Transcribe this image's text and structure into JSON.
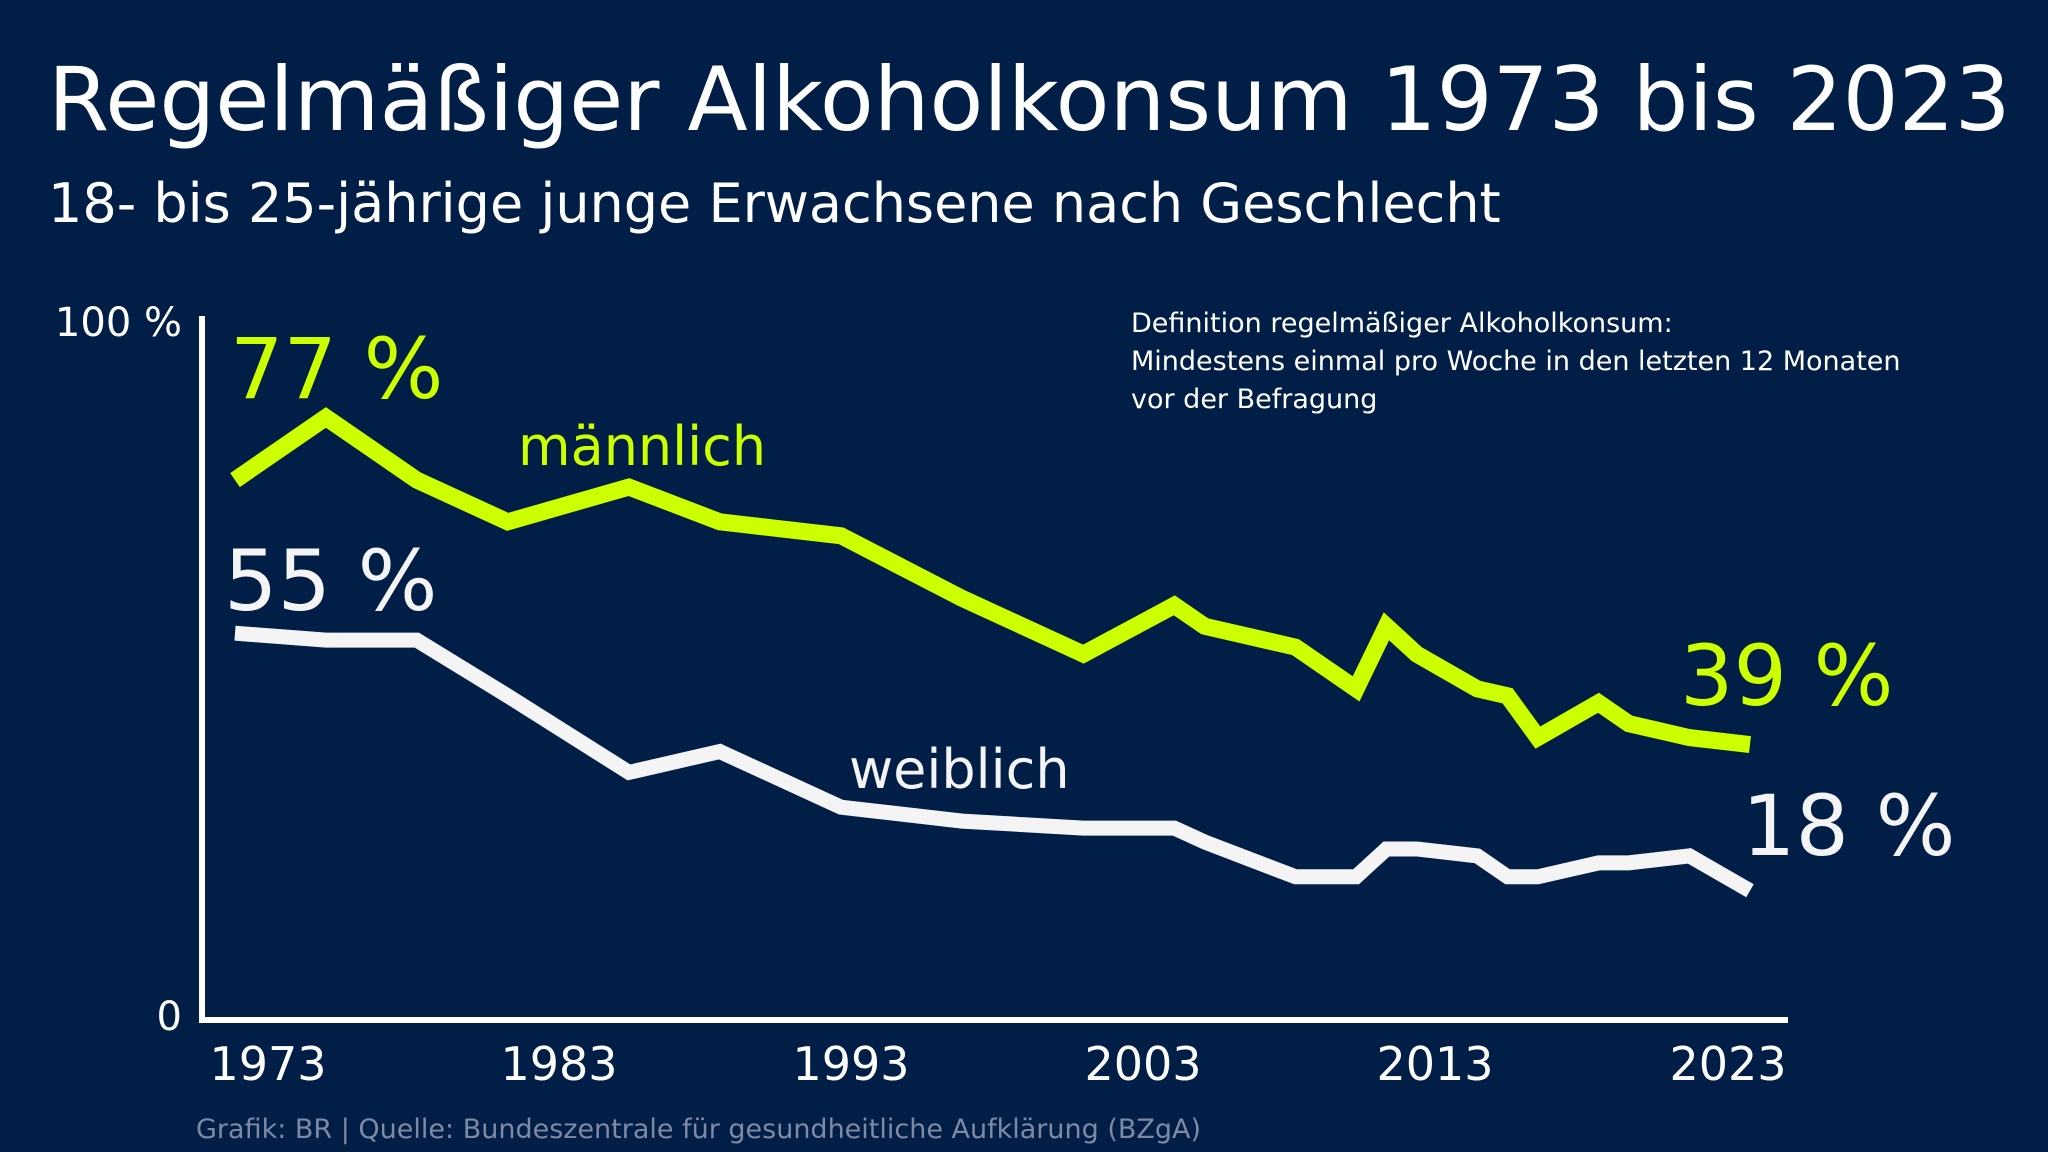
{
  "title": "Regelmäßiger Alkoholkonsum 1973 bis 2023",
  "subtitle": "18- bis 25-jährige junge Erwachsene nach Geschlecht",
  "definition": [
    "Definition regelmäßiger Alkoholkonsum:",
    "Mindestens einmal pro Woche in den letzten 12 Monaten",
    "vor der Befragung"
  ],
  "footer": "Grafik: BR | Quelle: Bundeszentrale für gesundheitliche Aufklärung (BZgA)",
  "colors": {
    "background": "#011e46",
    "male": "#ccff00",
    "female": "#f4f4f4",
    "footer": "#7e8aa5"
  },
  "chart_data": {
    "type": "line",
    "xlim": [
      1973,
      2023
    ],
    "ylim": [
      0,
      100
    ],
    "grid": false,
    "x_ticks": [
      "1973",
      "1983",
      "1993",
      "2003",
      "2013",
      "2023"
    ],
    "y_ticks": [
      "0",
      "100 %"
    ],
    "series": [
      {
        "name": "männlich",
        "color": "#ccff00",
        "x": [
          1973,
          1976,
          1979,
          1982,
          1986,
          1989,
          1993,
          1997,
          2001,
          2004,
          2005,
          2008,
          2010,
          2011,
          2012,
          2014,
          2015,
          2016,
          2018,
          2019,
          2021,
          2023
        ],
        "y": [
          77,
          86,
          77,
          71,
          76,
          71,
          69,
          60,
          52,
          59,
          56,
          53,
          47,
          56,
          52,
          47,
          46,
          40,
          45,
          42,
          40,
          39
        ],
        "start_label": "77 %",
        "end_label": "39 %"
      },
      {
        "name": "weiblich",
        "color": "#f4f4f4",
        "x": [
          1973,
          1976,
          1979,
          1982,
          1986,
          1989,
          1993,
          1997,
          2001,
          2004,
          2005,
          2008,
          2010,
          2011,
          2012,
          2014,
          2015,
          2016,
          2018,
          2019,
          2021,
          2023
        ],
        "y": [
          55,
          54,
          54,
          46,
          35,
          38,
          30,
          28,
          27,
          27,
          25,
          20,
          20,
          24,
          24,
          23,
          20,
          20,
          22,
          22,
          23,
          18
        ],
        "start_label": "55 %",
        "end_label": "18 %"
      }
    ]
  }
}
